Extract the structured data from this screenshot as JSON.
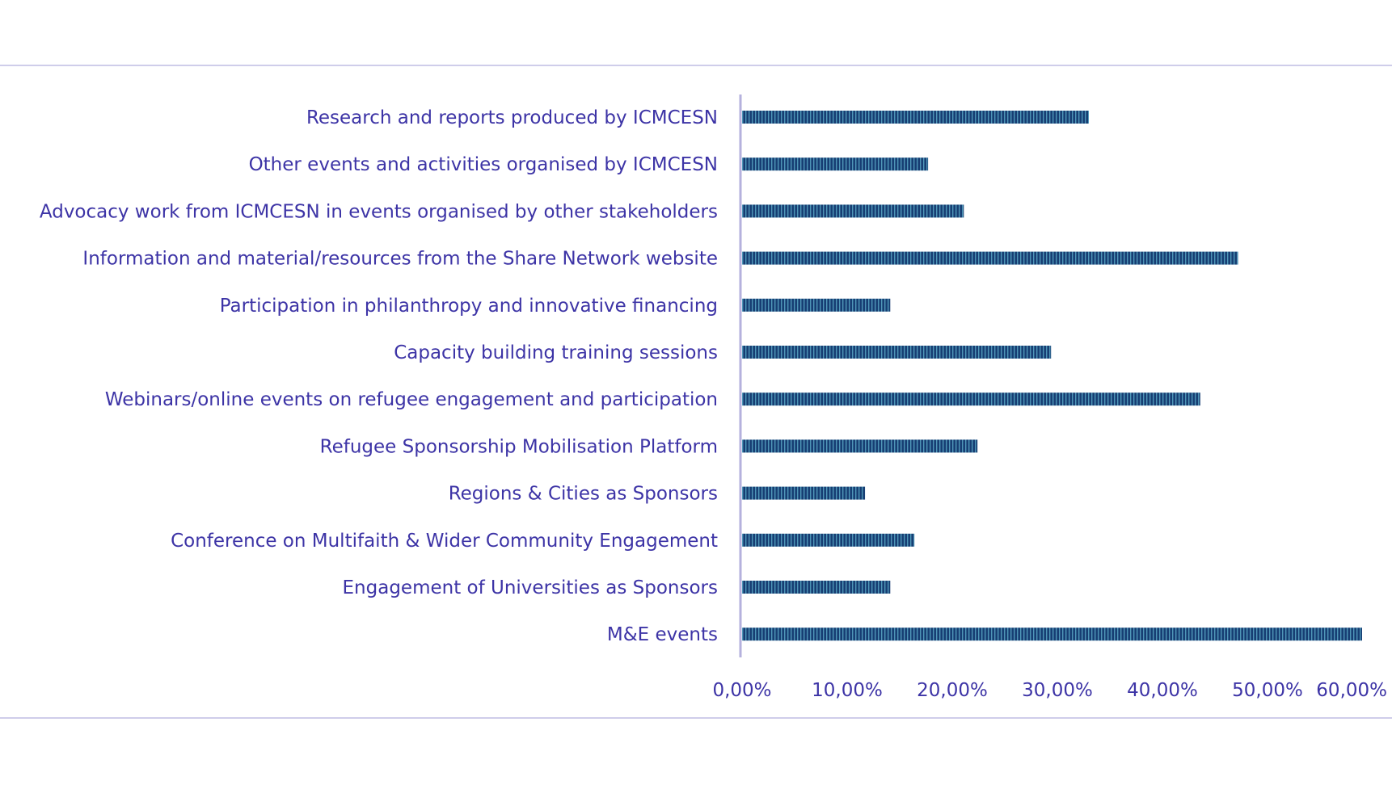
{
  "colors": {
    "text": "#3d34a6",
    "axis": "#b5b1dd",
    "border": "#cfcdea",
    "bar_dark": "#173e73",
    "bar_light": "#4f96b8"
  },
  "chart_data": {
    "type": "bar",
    "orientation": "horizontal",
    "categories": [
      "Research and reports produced by ICMCESN",
      "Other events and activities organised by ICMCESN",
      "Advocacy work from ICMCESN in events organised by other stakeholders",
      "Information and material/resources from the Share Network website",
      "Participation in philanthropy and innovative financing",
      "Capacity building training sessions",
      "Webinars/online events on refugee engagement and participation",
      "Refugee Sponsorship Mobilisation Platform",
      "Regions & Cities as Sponsors",
      "Conference on Multifaith & Wider Community Engagement",
      "Engagement of Universities as Sponsors",
      "M&E events"
    ],
    "values": [
      33.0,
      17.7,
      21.1,
      47.2,
      14.1,
      29.4,
      43.6,
      22.4,
      11.7,
      16.4,
      14.1,
      59.0
    ],
    "x_ticks": [
      "0,00%",
      "10,00%",
      "20,00%",
      "30,00%",
      "40,00%",
      "50,00%",
      "60,00%"
    ],
    "xlim": [
      0,
      60
    ],
    "grid": false,
    "legend": "none",
    "title": "",
    "xlabel": "",
    "ylabel": ""
  }
}
